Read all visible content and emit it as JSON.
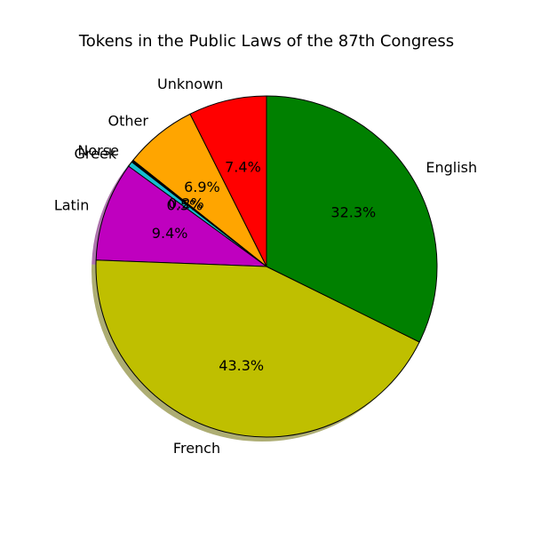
{
  "chart_data": {
    "type": "pie",
    "title": "Tokens in the Public Laws of the 87th Congress",
    "start_angle_deg": 90,
    "direction": "counterclockwise",
    "shadow": true,
    "slices": [
      {
        "label": "Unknown",
        "value": 7.4,
        "pct_text": "7.4%",
        "color": "#ff0000"
      },
      {
        "label": "Other",
        "value": 6.9,
        "pct_text": "6.9%",
        "color": "#ffa500"
      },
      {
        "label": "Norse",
        "value": 0.2,
        "pct_text": "0.2%",
        "color": "#000000"
      },
      {
        "label": "Greek",
        "value": 0.5,
        "pct_text": "0.5%",
        "color": "#17becf"
      },
      {
        "label": "Latin",
        "value": 9.4,
        "pct_text": "9.4%",
        "color": "#bf00bf"
      },
      {
        "label": "French",
        "value": 43.3,
        "pct_text": "43.3%",
        "color": "#bfbf00"
      },
      {
        "label": "English",
        "value": 32.3,
        "pct_text": "32.3%",
        "color": "#008000"
      }
    ]
  }
}
